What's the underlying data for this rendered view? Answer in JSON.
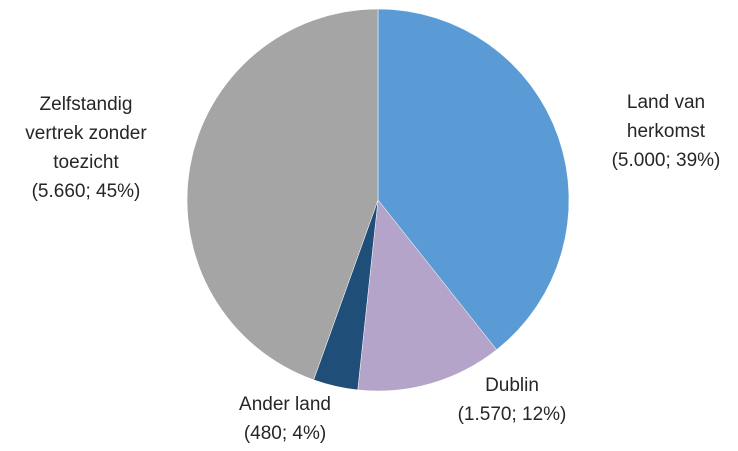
{
  "chart_data": {
    "type": "pie",
    "categories": [
      "Land van herkomst",
      "Dublin",
      "Ander land",
      "Zelfstandig vertrek zonder toezicht"
    ],
    "values": [
      5000,
      1570,
      480,
      5660
    ],
    "value_labels": [
      "(5.000; 39%)",
      "(1.570; 12%)",
      "(480; 4%)",
      "(5.660; 45%)"
    ],
    "colors": [
      "#5b9bd5",
      "#b4a4ca",
      "#1f4e79",
      "#a5a5a5"
    ]
  }
}
